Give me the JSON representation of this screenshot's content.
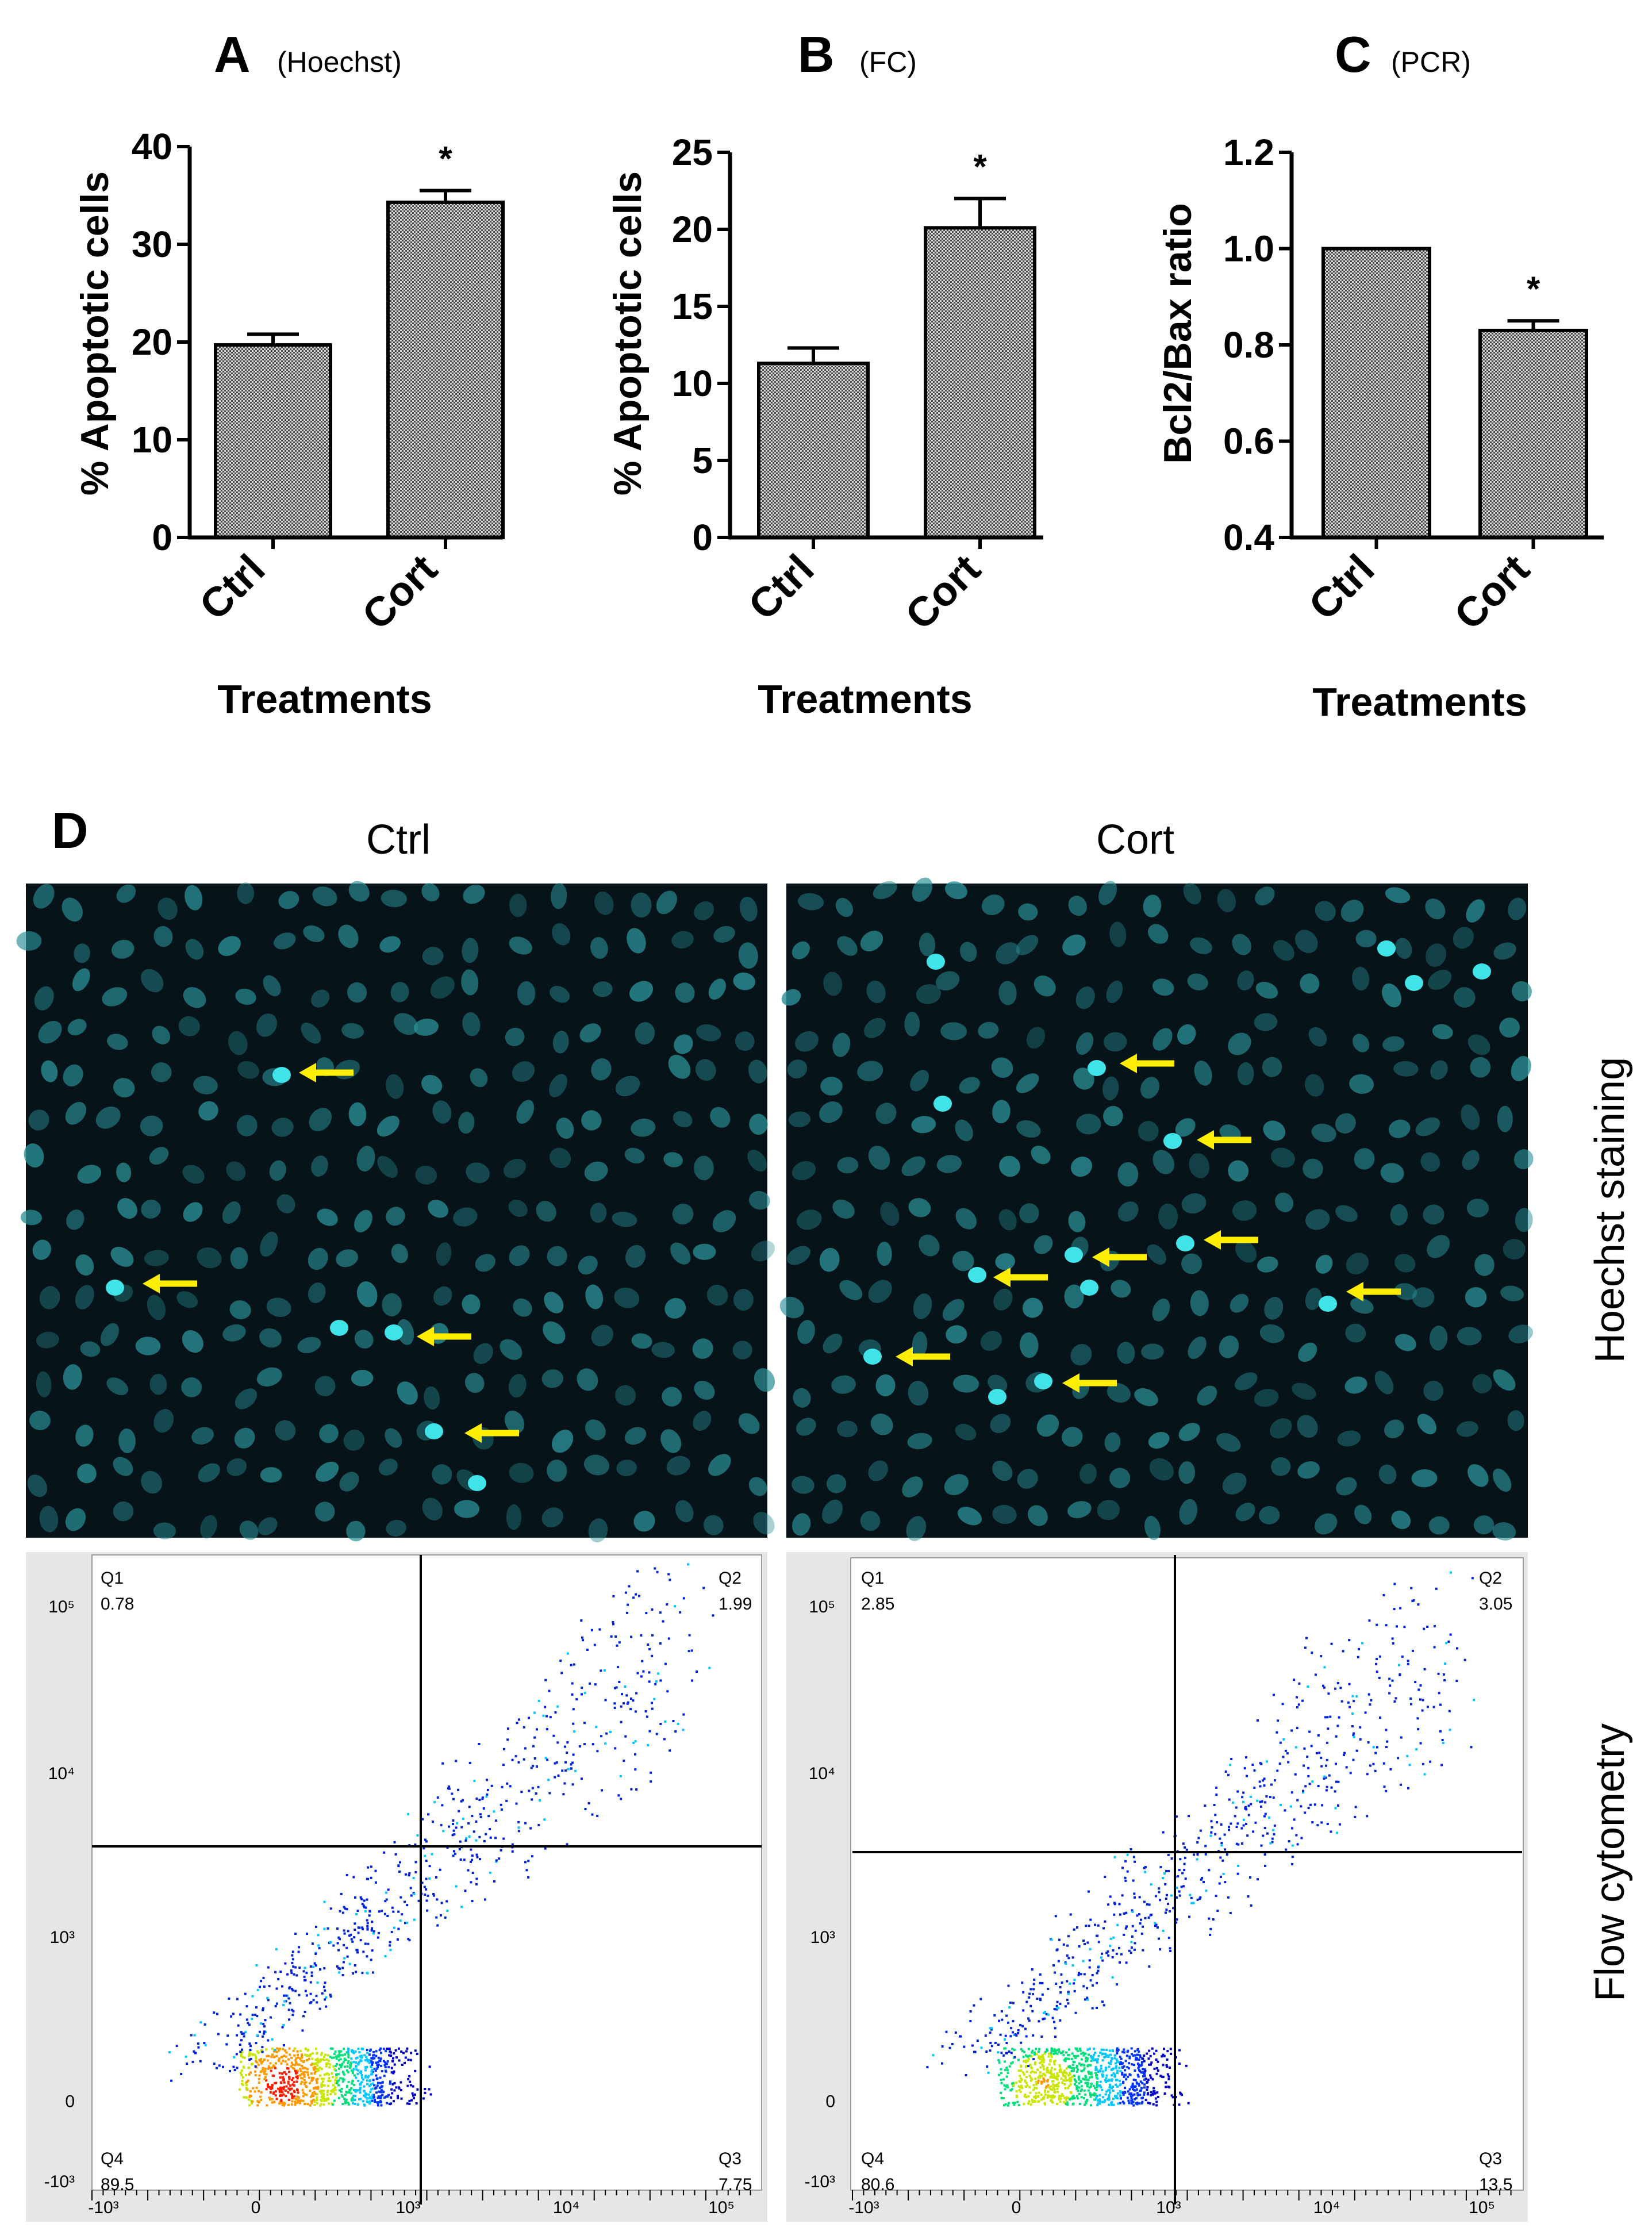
{
  "colors": {
    "bar_fill": "#8a8a8a",
    "micro_bg": "#06141a",
    "nucleus": "#2a8f96",
    "nucleus_bright": "#3fe3e8",
    "arrow": "#ffee00",
    "gate_line": "#000000",
    "flow_bg": "#e6e6e6"
  },
  "chart_data": [
    {
      "type": "bar",
      "panel": "A",
      "subtitle": "(Hoechst)",
      "categories": [
        "Ctrl",
        "Cort"
      ],
      "values": [
        19.7,
        34.3
      ],
      "errors": [
        1.1,
        1.2
      ],
      "significance": [
        "",
        "*"
      ],
      "ylabel": "% Apoptotic cells",
      "xlabel": "Treatments",
      "ylim": [
        0,
        40
      ],
      "yticks": [
        "0",
        "10",
        "20",
        "30",
        "40"
      ]
    },
    {
      "type": "bar",
      "panel": "B",
      "subtitle": "(FC)",
      "categories": [
        "Ctrl",
        "Cort"
      ],
      "values": [
        11.3,
        20.1
      ],
      "errors": [
        1.0,
        1.9
      ],
      "significance": [
        "",
        "*"
      ],
      "ylabel": "% Apoptotic cells",
      "xlabel": "Treatments",
      "ylim": [
        0,
        25
      ],
      "yticks": [
        "0",
        "5",
        "10",
        "15",
        "20",
        "25"
      ]
    },
    {
      "type": "bar",
      "panel": "C",
      "subtitle": "(PCR)",
      "categories": [
        "Ctrl",
        "Cort"
      ],
      "values": [
        1.0,
        0.83
      ],
      "errors": [
        0.0,
        0.02
      ],
      "significance": [
        "",
        "*"
      ],
      "ylabel": "Bcl2/Bax ratio",
      "xlabel": "Treatments",
      "ylim": [
        0.4,
        1.2
      ],
      "yticks": [
        "0.4",
        "0.6",
        "0.8",
        "1.0",
        "1.2"
      ]
    },
    {
      "type": "scatter",
      "panel": "D",
      "group": "Ctrl",
      "plot": "flow cytometry",
      "quadrants": [
        {
          "name": "Q1",
          "value": "0.78"
        },
        {
          "name": "Q2",
          "value": "1.99"
        },
        {
          "name": "Q3",
          "value": "7.75"
        },
        {
          "name": "Q4",
          "value": "89.5"
        }
      ],
      "y_tick_labels": [
        "10⁵",
        "10⁴",
        "10³",
        "0",
        "-10³"
      ],
      "x_tick_labels": [
        "-10³",
        "0",
        "10³",
        "10⁴",
        "10⁵"
      ]
    },
    {
      "type": "scatter",
      "panel": "D",
      "group": "Cort",
      "plot": "flow cytometry",
      "quadrants": [
        {
          "name": "Q1",
          "value": "2.85"
        },
        {
          "name": "Q2",
          "value": "3.05"
        },
        {
          "name": "Q3",
          "value": "13.5"
        },
        {
          "name": "Q4",
          "value": "80.6"
        }
      ],
      "y_tick_labels": [
        "10⁵",
        "10⁴",
        "10³",
        "0",
        "-10³"
      ],
      "x_tick_labels": [
        "-10³",
        "0",
        "10³",
        "10⁴",
        "10⁵"
      ]
    }
  ],
  "panel_d": {
    "letter": "D",
    "ctrl_title": "Ctrl",
    "cort_title": "Cort",
    "row1_label": "Hoechst staining",
    "row2_label": "Flow cytometry",
    "ctrl_arrow_count": 4,
    "cort_arrow_count": 8
  }
}
